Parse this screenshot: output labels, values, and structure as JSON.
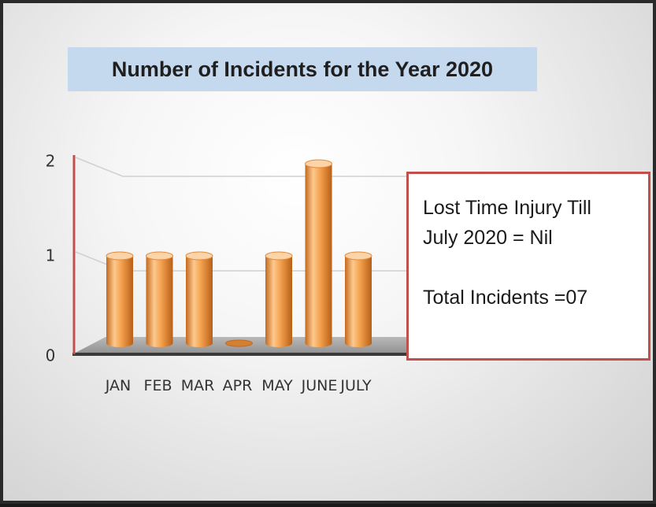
{
  "title": "Number of Incidents for the Year 2020",
  "info": {
    "line1": "Lost Time Injury Till",
    "line2": "July 2020 = Nil",
    "line3": "Total Incidents =07"
  },
  "colors": {
    "bar": "#f4a14e",
    "bar_dark": "#c06a1e",
    "bar_light": "#fcd4a8",
    "axis": "#c0504d",
    "title_bg": "#c5d9ee",
    "box_border": "#c0504d"
  },
  "chart_data": {
    "type": "bar",
    "categories": [
      "JAN",
      "FEB",
      "MAR",
      "APR",
      "MAY",
      "JUNE",
      "JULY"
    ],
    "values": [
      1,
      1,
      1,
      0,
      1,
      2,
      1
    ],
    "ylim": [
      0,
      2
    ],
    "yticks": [
      0,
      1,
      2
    ],
    "grid": true
  }
}
